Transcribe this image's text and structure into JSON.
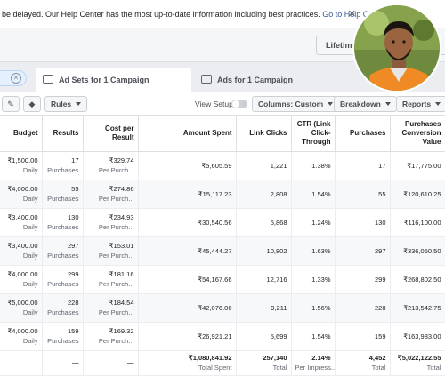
{
  "notice": {
    "text": "be delayed. Our Help Center has the most up-to-date information including best practices.",
    "link": "Go to Help Center",
    "close": "✕"
  },
  "date_button": {
    "label": "Lifetime"
  },
  "tabs": {
    "adsets": "Ad Sets for 1 Campaign",
    "ads": "Ads for 1 Campaign"
  },
  "toolbar": {
    "rules": "Rules",
    "view_setup": "View Setup",
    "columns": "Columns: Custom",
    "breakdown": "Breakdown",
    "reports": "Reports"
  },
  "columns": [
    "Budget",
    "Results",
    "Cost per Result",
    "Amount Spent",
    "Link Clicks",
    "CTR (Link Click-Through",
    "Purchases",
    "Purchases Conversion Value"
  ],
  "rows": [
    {
      "budget": "₹1,500.00",
      "budget_sub": "Daily",
      "results": "17",
      "results_sub": "Purchases",
      "cpr": "₹329.74",
      "cpr_sub": "Per Purch...",
      "spent": "₹5,605.59",
      "clicks": "1,221",
      "ctr": "1.38%",
      "purchases": "17",
      "value": "₹17,775.00"
    },
    {
      "budget": "₹4,000.00",
      "budget_sub": "Daily",
      "results": "55",
      "results_sub": "Purchases",
      "cpr": "₹274.86",
      "cpr_sub": "Per Purch...",
      "spent": "₹15,117.23",
      "clicks": "2,808",
      "ctr": "1.54%",
      "purchases": "55",
      "value": "₹120,610.25"
    },
    {
      "budget": "₹3,400.00",
      "budget_sub": "Daily",
      "results": "130",
      "results_sub": "Purchases",
      "cpr": "₹234.93",
      "cpr_sub": "Per Purch...",
      "spent": "₹30,540.56",
      "clicks": "5,868",
      "ctr": "1.24%",
      "purchases": "130",
      "value": "₹116,100.00"
    },
    {
      "budget": "₹3,400.00",
      "budget_sub": "Daily",
      "results": "297",
      "results_sub": "Purchases",
      "cpr": "₹153.01",
      "cpr_sub": "Per Purch...",
      "spent": "₹45,444.27",
      "clicks": "10,802",
      "ctr": "1.63%",
      "purchases": "297",
      "value": "₹336,050.50"
    },
    {
      "budget": "₹4,000.00",
      "budget_sub": "Daily",
      "results": "299",
      "results_sub": "Purchases",
      "cpr": "₹181.16",
      "cpr_sub": "Per Purch...",
      "spent": "₹54,167.66",
      "clicks": "12,716",
      "ctr": "1.33%",
      "purchases": "299",
      "value": "₹268,802.50"
    },
    {
      "budget": "₹5,000.00",
      "budget_sub": "Daily",
      "results": "228",
      "results_sub": "Purchases",
      "cpr": "₹184.54",
      "cpr_sub": "Per Purch...",
      "spent": "₹42,076.06",
      "clicks": "9,211",
      "ctr": "1.56%",
      "purchases": "228",
      "value": "₹213,542.75"
    },
    {
      "budget": "₹4,000.00",
      "budget_sub": "Daily",
      "results": "159",
      "results_sub": "Purchases",
      "cpr": "₹169.32",
      "cpr_sub": "Per Purch...",
      "spent": "₹26,921.21",
      "clicks": "5,699",
      "ctr": "1.54%",
      "purchases": "159",
      "value": "₹163,983.00"
    }
  ],
  "totals": {
    "budget": "",
    "results": "—",
    "cpr": "—",
    "spent": "₹1,080,841.92",
    "spent_sub": "Total Spent",
    "clicks": "257,140",
    "clicks_sub": "Total",
    "ctr": "2.14%",
    "ctr_sub": "Per Impress...",
    "purchases": "4,452",
    "purchases_sub": "Total",
    "value": "₹5,022,122.55",
    "value_sub": "Total"
  },
  "colors": {
    "link": "#385898",
    "tab_active": "#ffffff",
    "header_border": "#dddfe2"
  }
}
